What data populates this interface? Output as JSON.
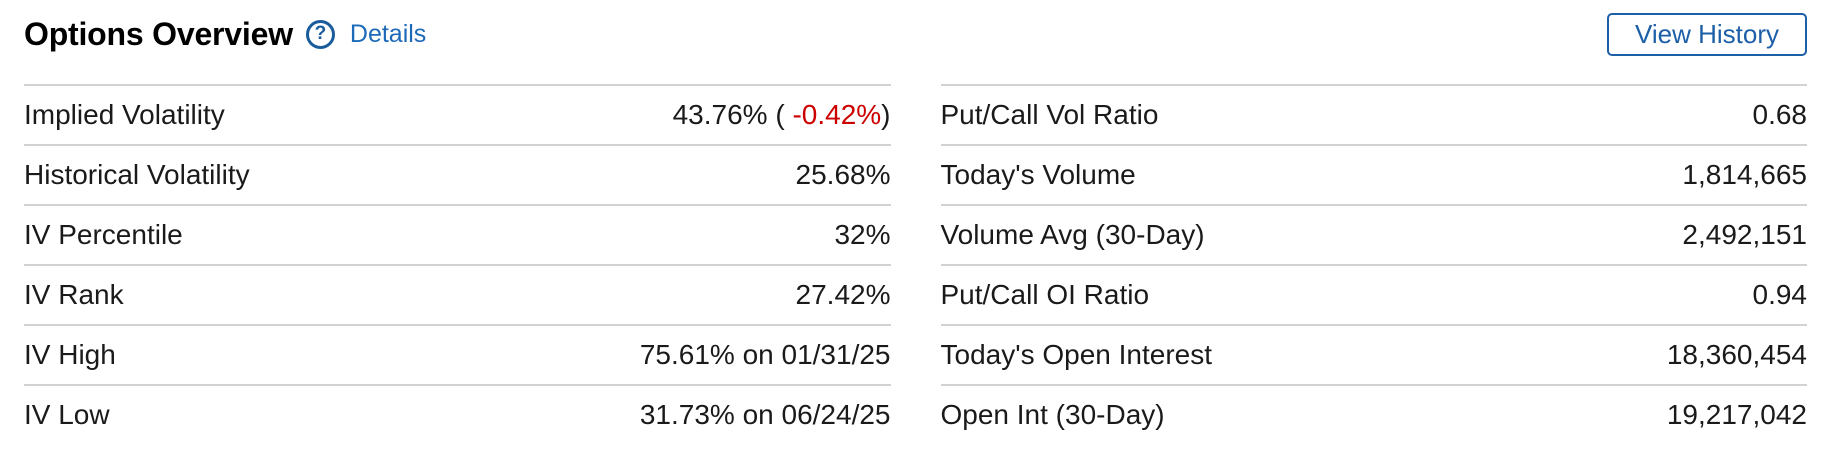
{
  "header": {
    "title": "Options Overview",
    "help_icon_glyph": "?",
    "details_label": "Details",
    "view_history_label": "View History"
  },
  "table": {
    "left_rows": [
      {
        "label": "Implied Volatility",
        "value_open": "43.76% ( ",
        "value_change": "-0.42%",
        "value_close": ")"
      },
      {
        "label": "Historical Volatility",
        "value": "25.68%"
      },
      {
        "label": "IV Percentile",
        "value": "32%"
      },
      {
        "label": "IV Rank",
        "value": "27.42%"
      },
      {
        "label": "IV High",
        "value": "75.61% on 01/31/25"
      },
      {
        "label": "IV Low",
        "value": "31.73% on 06/24/25"
      }
    ],
    "right_rows": [
      {
        "label": "Put/Call Vol Ratio",
        "value": "0.68"
      },
      {
        "label": "Today's Volume",
        "value": "1,814,665"
      },
      {
        "label": "Volume Avg (30-Day)",
        "value": "2,492,151"
      },
      {
        "label": "Put/Call OI Ratio",
        "value": "0.94"
      },
      {
        "label": "Today's Open Interest",
        "value": "18,360,454"
      },
      {
        "label": "Open Int (30-Day)",
        "value": "19,217,042"
      }
    ]
  },
  "colors": {
    "accent_blue": "#1d6ab8",
    "button_blue": "#1d5fa7",
    "icon_blue": "#1a5c9c",
    "negative_red": "#cc0000",
    "divider_gray": "#d2d2d2"
  }
}
